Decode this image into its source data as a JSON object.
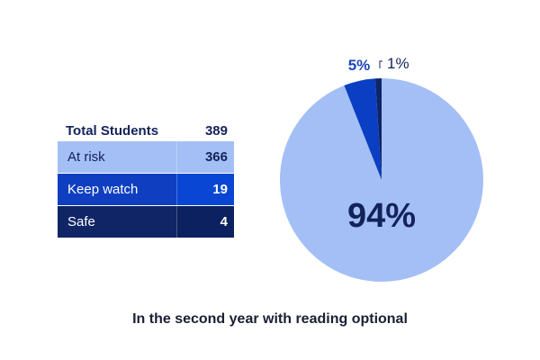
{
  "chart_data": {
    "type": "pie",
    "title": "In the second year with reading optional",
    "slices": [
      {
        "label": "At risk",
        "percent": 94,
        "value_label": "94%",
        "color": "#a4bff5"
      },
      {
        "label": "Keep watch",
        "percent": 5,
        "value_label": "5%",
        "color": "#0a3fc4"
      },
      {
        "label": "Safe",
        "percent": 1,
        "value_label": "1%",
        "color": "#0f2566"
      }
    ],
    "table": {
      "total_label": "Total Students",
      "total_value": "389",
      "rows": [
        {
          "label": "At risk",
          "value": "366"
        },
        {
          "label": "Keep watch",
          "value": "19"
        },
        {
          "label": "Safe",
          "value": "4"
        }
      ]
    }
  }
}
